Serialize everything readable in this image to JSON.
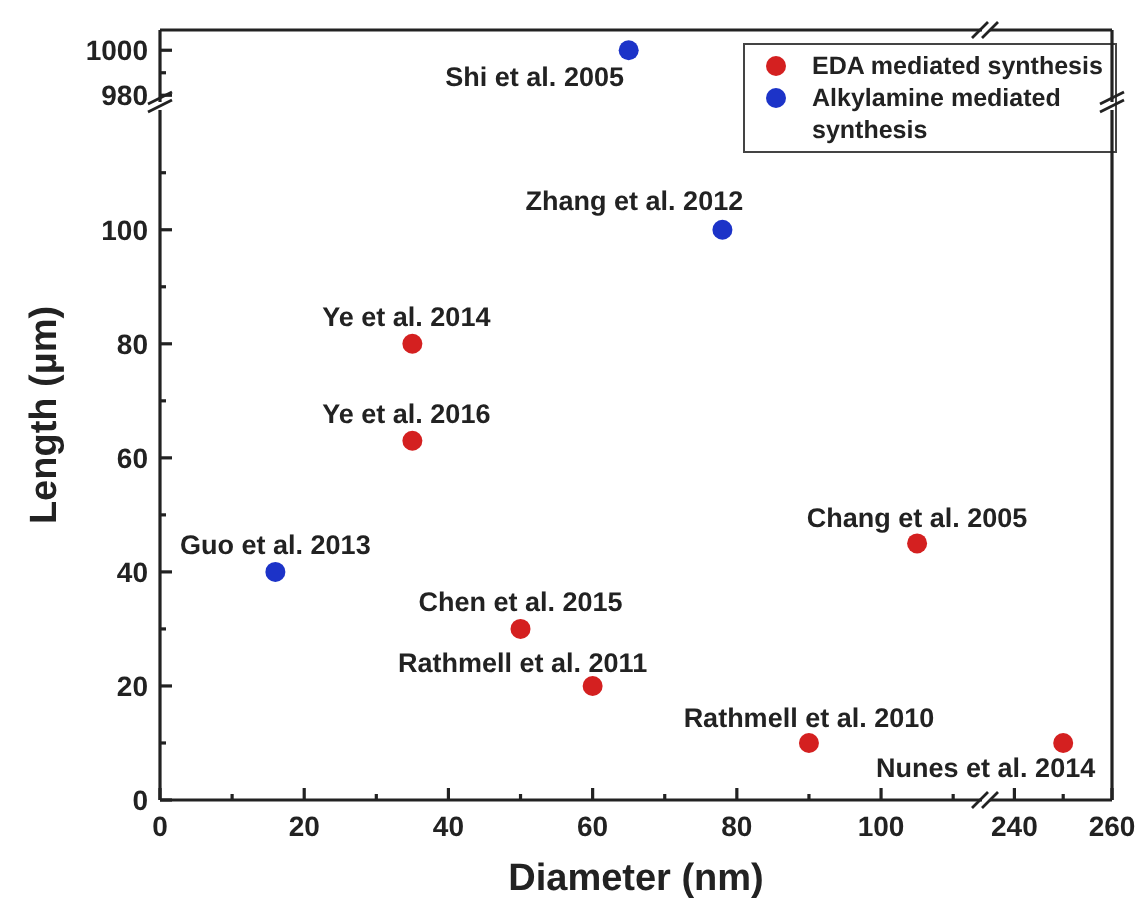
{
  "chart_data": [
    {
      "type": "scatter",
      "xlim": [
        0,
        114
      ],
      "ylim": [
        977,
        1009
      ],
      "yticks": [
        {
          "value": 980,
          "label": "980"
        },
        {
          "value": 990,
          "label": null
        },
        {
          "value": 1000,
          "label": "1000"
        }
      ],
      "tick_labels": "y",
      "legend": "right",
      "marker": "circle",
      "series": [
        {
          "name": "EDA mediated synthesis",
          "color": "#d42020"
        },
        {
          "name": "Alkylamine mediated synthesis",
          "color": "#1c33c8",
          "x": [
            65
          ],
          "values": [
            1000
          ]
        }
      ],
      "annotations": [
        {
          "text": "Shi et al. 2005",
          "x": 65,
          "y": 1000
        }
      ]
    },
    {
      "type": "scatter",
      "xlim": [
        235,
        260
      ],
      "ylim": [
        977,
        1009
      ],
      "tick_labels": false
    },
    {
      "type": "scatter",
      "xlim": [
        0,
        114
      ],
      "ylim": [
        0,
        121
      ],
      "xlabel": "Diameter (nm)",
      "ylabel": "Length (µm)",
      "marker": "circle",
      "xticks": [
        0,
        {
          "value": 10,
          "label": null
        },
        20,
        {
          "value": 30,
          "label": null
        },
        40,
        {
          "value": 50,
          "label": null
        },
        60,
        {
          "value": 70,
          "label": null
        },
        80,
        {
          "value": 90,
          "label": null
        },
        100,
        {
          "value": 110,
          "label": null
        }
      ],
      "yticks": [
        0,
        {
          "value": 10,
          "label": null
        },
        20,
        {
          "value": 30,
          "label": null
        },
        40,
        {
          "value": 50,
          "label": null
        },
        60,
        {
          "value": 70,
          "label": null
        },
        80,
        {
          "value": 90,
          "label": null
        },
        100,
        {
          "value": 110,
          "label": null
        }
      ],
      "series": [
        {
          "color": "#d42020",
          "x": [
            35,
            35,
            50,
            60,
            90,
            105
          ],
          "values": [
            80,
            63,
            30,
            20,
            10,
            45
          ]
        },
        {
          "color": "#1c33c8",
          "x": [
            78,
            16
          ],
          "values": [
            100,
            40
          ]
        }
      ],
      "annotations": [
        {
          "text": "Zhang et al. 2012",
          "x": 78,
          "y": 100
        },
        {
          "text": "Ye et al. 2014",
          "x": 35,
          "y": 80
        },
        {
          "text": "Ye et al. 2016",
          "x": 35,
          "y": 63
        },
        {
          "text": "Guo et al. 2013",
          "x": 16,
          "y": 40
        },
        {
          "text": "Chen et al. 2015",
          "x": 50,
          "y": 30
        },
        {
          "text": "Rathmell et al. 2011",
          "x": 60,
          "y": 20
        },
        {
          "text": "Rathmell et al. 2010",
          "x": 90,
          "y": 10
        },
        {
          "text": "Chang et al. 2005",
          "x": 105,
          "y": 45
        }
      ]
    },
    {
      "type": "scatter",
      "xlim": [
        235,
        260
      ],
      "ylim": [
        0,
        121
      ],
      "tick_labels": "x",
      "marker": "circle",
      "xticks": [
        240,
        {
          "value": 250,
          "label": null
        },
        260
      ],
      "series": [
        {
          "color": "#d42020",
          "x": [
            250
          ],
          "values": [
            10
          ]
        }
      ],
      "annotations": [
        {
          "text": "Nunes et al. 2014",
          "x": 250,
          "y": 10
        }
      ]
    }
  ]
}
